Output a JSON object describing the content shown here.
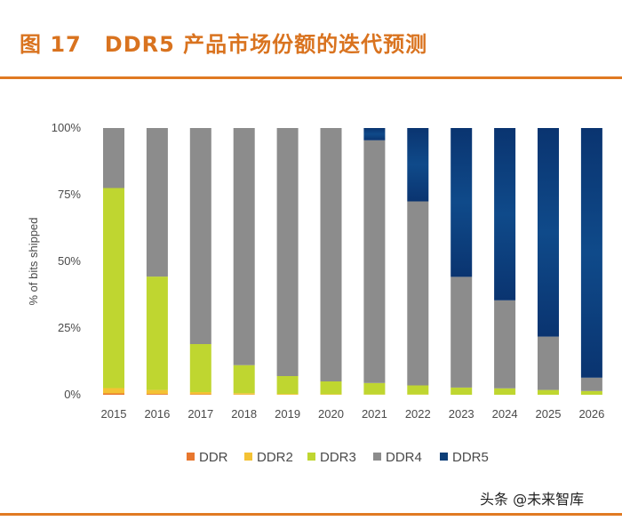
{
  "figure": {
    "number": "图 17",
    "title": "DDR5 产品市场份额的迭代预测"
  },
  "watermark": "头条 @未来智库",
  "chart_data": {
    "type": "bar",
    "stacked": true,
    "title": "",
    "xlabel": "",
    "ylabel": "% of bits shipped",
    "ylim": [
      0,
      100
    ],
    "yticks": [
      "0%",
      "25%",
      "50%",
      "75%",
      "100%"
    ],
    "grid": false,
    "legend_position": "bottom",
    "categories": [
      "2015",
      "2016",
      "2017",
      "2018",
      "2019",
      "2020",
      "2021",
      "2022",
      "2023",
      "2024",
      "2025",
      "2026"
    ],
    "series": [
      {
        "name": "DDR",
        "color": "#e8772e",
        "values": [
          0.5,
          0.3,
          0.2,
          0.1,
          0,
          0,
          0,
          0,
          0,
          0,
          0,
          0
        ]
      },
      {
        "name": "DDR2",
        "color": "#f4c234",
        "values": [
          2.0,
          1.5,
          0.8,
          0.5,
          0.3,
          0.2,
          0.1,
          0.1,
          0,
          0,
          0,
          0
        ]
      },
      {
        "name": "DDR3",
        "color": "#bfd630",
        "values": [
          75.0,
          42.5,
          18.0,
          10.5,
          6.7,
          4.8,
          4.3,
          3.4,
          2.7,
          2.4,
          1.8,
          1.4
        ]
      },
      {
        "name": "DDR4",
        "color": "#8c8c8c",
        "values": [
          22.5,
          55.7,
          81.0,
          88.9,
          93.0,
          95.0,
          91.0,
          69.0,
          41.5,
          33.0,
          20.0,
          5.0
        ]
      },
      {
        "name": "DDR5",
        "color": "#0e3f78",
        "values": [
          0,
          0,
          0,
          0,
          0,
          0,
          4.6,
          27.5,
          55.8,
          64.6,
          78.2,
          93.6
        ]
      }
    ]
  }
}
